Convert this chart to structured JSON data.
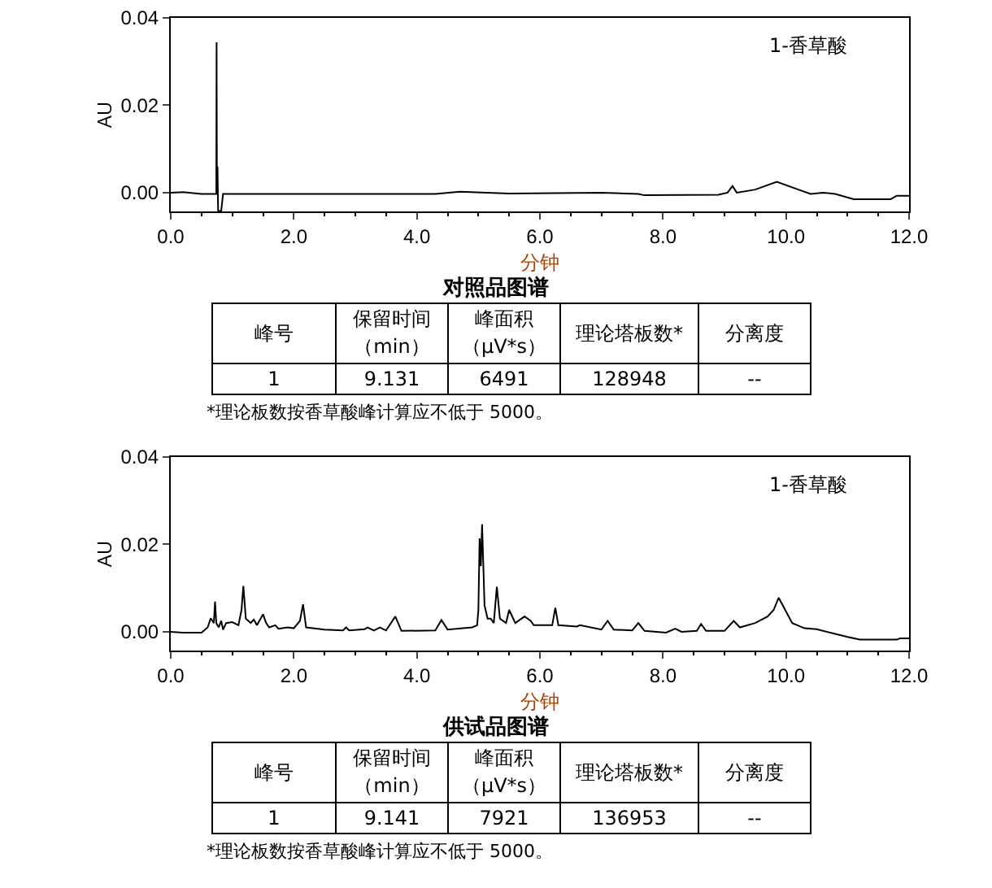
{
  "chart_data": [
    {
      "type": "line",
      "title": "对照品图谱",
      "xlabel": "分钟",
      "ylabel": "AU",
      "xlim": [
        0,
        12
      ],
      "ylim": [
        -0.0043,
        0.04
      ],
      "xticks": [
        {
          "value": 0,
          "label": "0.0"
        },
        {
          "value": 2,
          "label": "2.0"
        },
        {
          "value": 4,
          "label": "4.0"
        },
        {
          "value": 6,
          "label": "6.0"
        },
        {
          "value": 8,
          "label": "8.0"
        },
        {
          "value": 10,
          "label": "10.0"
        },
        {
          "value": 12,
          "label": "12.0"
        }
      ],
      "yticks": [
        {
          "value": 0,
          "label": "0.00"
        },
        {
          "value": 0.02,
          "label": "0.02"
        },
        {
          "value": 0.04,
          "label": "0.04"
        }
      ],
      "grid": false,
      "marker": "none",
      "line_style": "solid",
      "series": [
        {
          "color": "#000000",
          "x": [
            0,
            0.2,
            0.5,
            0.74,
            0.745,
            0.75,
            0.76,
            0.77,
            0.82,
            0.85,
            4.3,
            4.7,
            5.5,
            7.0,
            7.6,
            7.7,
            8.9,
            9.05,
            9.13,
            9.2,
            9.5,
            9.85,
            10.2,
            10.4,
            10.6,
            10.8,
            11.1,
            11.7,
            11.8,
            12
          ],
          "values": [
            0,
            0.0001,
            -0.0003,
            -0.0003,
            0.0344,
            -0.0003,
            0.006,
            -0.0042,
            -0.0042,
            -0.0003,
            -0.0003,
            0.0002,
            -0.0002,
            0.0,
            -0.0003,
            -0.0006,
            -0.0005,
            0.0,
            0.0015,
            0.0,
            0.0007,
            0.0025,
            0.0007,
            -0.0003,
            0.0,
            -0.0003,
            -0.0015,
            -0.0015,
            -0.0007,
            -0.0007
          ]
        }
      ],
      "annotations": [
        "1-香草酸",
        "峰号",
        "保留时间（min）",
        "峰面积（μV*s）",
        "理论塔板数*",
        "分离度",
        "1",
        "9.131",
        "6491",
        "128948",
        "--",
        "*理论板数按香草酸峰计算应不低于 5000。"
      ]
    },
    {
      "type": "line",
      "title": "供试品图谱",
      "xlabel": "分钟",
      "ylabel": "AU",
      "xlim": [
        0,
        12
      ],
      "ylim": [
        -0.0043,
        0.04
      ],
      "xticks": [
        {
          "value": 0,
          "label": "0.0"
        },
        {
          "value": 2,
          "label": "2.0"
        },
        {
          "value": 4,
          "label": "4.0"
        },
        {
          "value": 6,
          "label": "6.0"
        },
        {
          "value": 8,
          "label": "8.0"
        },
        {
          "value": 10,
          "label": "10.0"
        },
        {
          "value": 12,
          "label": "12.0"
        }
      ],
      "yticks": [
        {
          "value": 0,
          "label": "0.00"
        },
        {
          "value": 0.02,
          "label": "0.02"
        },
        {
          "value": 0.04,
          "label": "0.04"
        }
      ],
      "grid": false,
      "marker": "none",
      "line_style": "solid",
      "series": [
        {
          "color": "#000000",
          "x": [
            0,
            0.2,
            0.5,
            0.6,
            0.65,
            0.7,
            0.72,
            0.74,
            0.78,
            0.82,
            0.85,
            0.9,
            1.0,
            1.1,
            1.15,
            1.18,
            1.22,
            1.3,
            1.35,
            1.4,
            1.5,
            1.55,
            1.6,
            1.7,
            1.75,
            1.9,
            2.0,
            2.1,
            2.15,
            2.2,
            2.5,
            2.8,
            2.85,
            2.9,
            3.15,
            3.2,
            3.3,
            3.4,
            3.5,
            3.65,
            3.75,
            4.3,
            4.4,
            4.5,
            4.9,
            4.98,
            5.0,
            5.02,
            5.04,
            5.06,
            5.1,
            5.15,
            5.2,
            5.25,
            5.3,
            5.35,
            5.45,
            5.5,
            5.6,
            5.75,
            5.8,
            5.85,
            5.9,
            6.2,
            6.25,
            6.3,
            6.6,
            6.65,
            7.0,
            7.1,
            7.2,
            7.5,
            7.6,
            7.7,
            8.05,
            8.2,
            8.3,
            8.55,
            8.62,
            8.7,
            9.0,
            9.15,
            9.25,
            9.5,
            9.7,
            9.8,
            9.88,
            9.95,
            10.1,
            10.3,
            10.5,
            10.8,
            11.0,
            11.2,
            11.8,
            11.85,
            12
          ],
          "values": [
            0,
            -0.0002,
            -0.0002,
            0.001,
            0.0031,
            0.002,
            0.0069,
            0.002,
            0.001,
            0.0025,
            0.0005,
            0.002,
            0.0022,
            0.0015,
            0.005,
            0.0105,
            0.003,
            0.002,
            0.0028,
            0.0015,
            0.004,
            0.002,
            0.001,
            0.0015,
            0.0007,
            0.001,
            0.0008,
            0.0025,
            0.0063,
            0.001,
            0.0005,
            0.0003,
            0.001,
            0.0003,
            0.0006,
            0.001,
            0.0003,
            0.001,
            0.0003,
            0.0035,
            0.0002,
            0.0003,
            0.0027,
            0.0005,
            0.001,
            0.0015,
            0.005,
            0.0214,
            0.015,
            0.0246,
            0.006,
            0.003,
            0.003,
            0.002,
            0.0103,
            0.003,
            0.002,
            0.005,
            0.002,
            0.0035,
            0.003,
            0.0025,
            0.0015,
            0.0015,
            0.0055,
            0.0015,
            0.0012,
            0.0015,
            0.0005,
            0.0025,
            0.0005,
            0.0003,
            0.002,
            0.0002,
            -0.0002,
            0.0007,
            0,
            0.0002,
            0.0018,
            0.0002,
            0.0002,
            0.0025,
            0.001,
            0.002,
            0.0035,
            0.005,
            0.0078,
            0.006,
            0.002,
            0.0008,
            0.0006,
            -0.0005,
            -0.0012,
            -0.0018,
            -0.0018,
            -0.0015,
            -0.0015
          ]
        }
      ],
      "annotations": [
        "1-香草酸",
        "峰号",
        "保留时间（min）",
        "峰面积（μV*s）",
        "理论塔板数*",
        "分离度",
        "1",
        "9.141",
        "7921",
        "136953",
        "--",
        "*理论板数按香草酸峰计算应不低于 5000。"
      ]
    }
  ]
}
